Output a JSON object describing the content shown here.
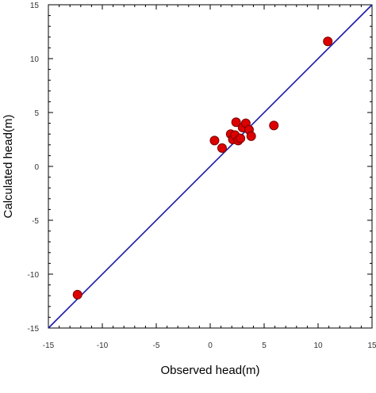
{
  "chart_data": {
    "type": "scatter",
    "xlabel": "Observed head(m)",
    "ylabel": "Calculated head(m)",
    "xlim": [
      -15,
      15
    ],
    "ylim": [
      -15,
      15
    ],
    "xticks": [
      -15,
      -10,
      -5,
      0,
      5,
      10,
      15
    ],
    "yticks": [
      -15,
      -10,
      -5,
      0,
      5,
      10,
      15
    ],
    "grid": false,
    "reference_line": {
      "from": [
        -15,
        -15
      ],
      "to": [
        15,
        15
      ],
      "color": "#1a1aa8"
    },
    "marker_color": "#dd0000",
    "series": [
      {
        "points": [
          [
            -12.3,
            -11.9
          ],
          [
            0.4,
            2.4
          ],
          [
            1.1,
            1.7
          ],
          [
            1.9,
            3.0
          ],
          [
            2.1,
            2.5
          ],
          [
            2.3,
            2.9
          ],
          [
            2.4,
            4.1
          ],
          [
            2.6,
            2.4
          ],
          [
            2.8,
            2.6
          ],
          [
            3.0,
            3.6
          ],
          [
            3.3,
            4.0
          ],
          [
            3.6,
            3.4
          ],
          [
            3.8,
            2.8
          ],
          [
            5.9,
            3.8
          ],
          [
            10.9,
            11.6
          ]
        ]
      }
    ]
  }
}
